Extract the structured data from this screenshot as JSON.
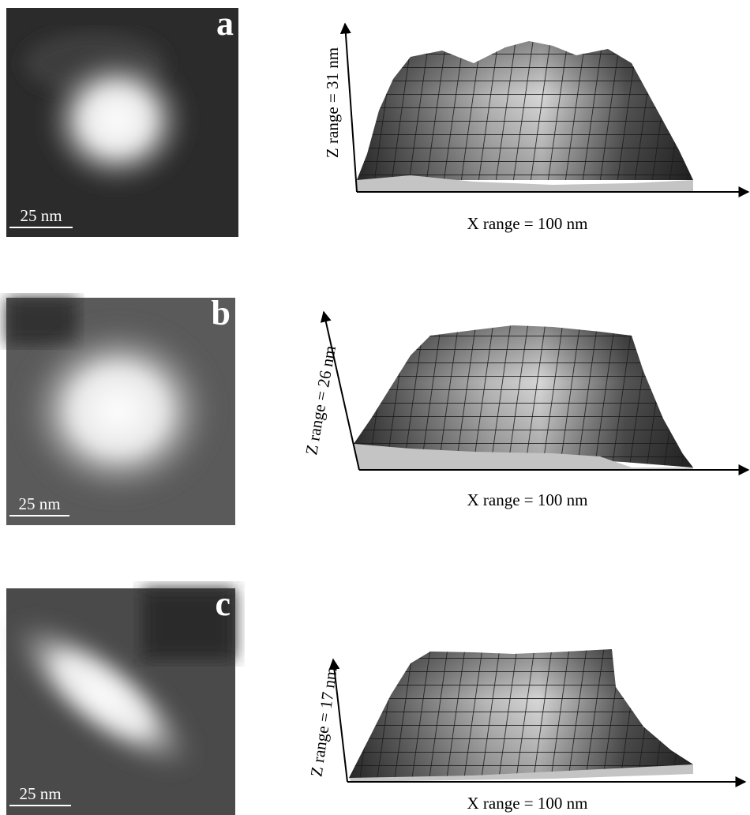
{
  "panels": [
    {
      "label": "a",
      "scale_bar": "25 nm",
      "z_axis": "Z range = 31 nm",
      "x_axis": "X range = 100 nm"
    },
    {
      "label": "b",
      "scale_bar": "25 nm",
      "z_axis": "Z range = 26 nm",
      "x_axis": "X range = 100 nm"
    },
    {
      "label": "c",
      "scale_bar": "25 nm",
      "z_axis": "Z range = 17 nm",
      "x_axis": "X range = 100 nm"
    }
  ]
}
